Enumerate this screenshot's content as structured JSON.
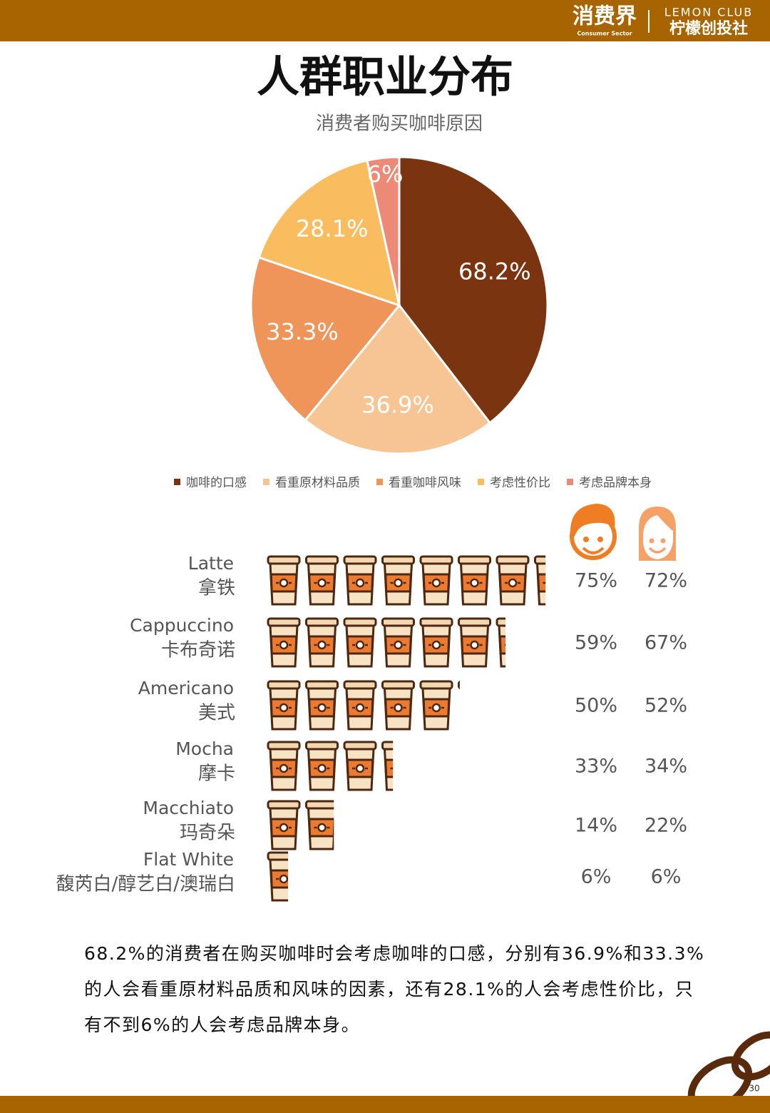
{
  "header": {
    "brand": "消费界",
    "brand_en": "Consumer Sector",
    "partner_en": "LEMON CLUB",
    "partner": "柠檬创投社"
  },
  "title": "人群职业分布",
  "chart_data": [
    {
      "type": "pie",
      "title": "消费者购买咖啡原因",
      "categories": [
        "咖啡的口感",
        "看重原材料品质",
        "看重咖啡风味",
        "考虑性价比",
        "考虑品牌本身"
      ],
      "values": [
        68.2,
        36.9,
        33.3,
        28.1,
        6
      ],
      "value_labels": [
        "68.2%",
        "36.9%",
        "33.3%",
        "28.1%",
        "6%"
      ],
      "colors": [
        "#7a3410",
        "#f7c594",
        "#f0955a",
        "#f9bd5f",
        "#ec8a77"
      ],
      "legend": "bottom"
    },
    {
      "type": "pictograph",
      "categories": [
        "Latte",
        "Cappuccino",
        "Americano",
        "Mocha",
        "Macchiato",
        "Flat White"
      ],
      "categories_cn": [
        "拿铁",
        "卡布奇诺",
        "美式",
        "摩卡",
        "玛奇朵",
        "馥芮白/醇艺白/澳瑞白"
      ],
      "series": [
        {
          "color": "#ef7d24",
          "values": [
            75,
            59,
            50,
            33,
            14,
            6
          ],
          "value_labels": [
            "75%",
            "59%",
            "50%",
            "33%",
            "14%",
            "6%"
          ]
        },
        {
          "color": "#f6a166",
          "values": [
            72,
            67,
            52,
            34,
            22,
            6
          ],
          "value_labels": [
            "72%",
            "67%",
            "52%",
            "34%",
            "22%",
            "6%"
          ]
        }
      ]
    }
  ],
  "paragraph": "68.2%的消费者在购买咖啡时会考虑咖啡的口感，分别有36.9%和33.3%的人会看重原材料品质和风味的因素，还有28.1%的人会考虑性价比，只有不到6%的人会考虑品牌本身。",
  "page_number": "30"
}
